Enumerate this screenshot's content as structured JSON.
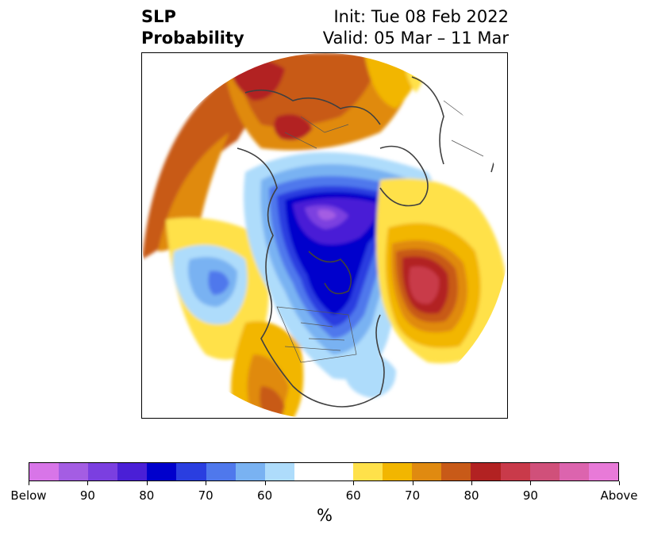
{
  "header": {
    "title_line1": "SLP",
    "title_line2": "Probability",
    "init": "Init: Tue 08 Feb 2022",
    "valid": "Valid: 05 Mar – 11 Mar"
  },
  "colorbar": {
    "unit": "%",
    "colors": [
      "#d875e8",
      "#a45de3",
      "#7b3fe0",
      "#4a1fd6",
      "#0000cc",
      "#2a3ee0",
      "#4f78ec",
      "#79b2f2",
      "#aedcfb",
      "#ffffff",
      "#ffe14a",
      "#f2b600",
      "#e08a10",
      "#c85a18",
      "#b22222",
      "#c93a4a",
      "#d0507a",
      "#dc64ae",
      "#e87ad8"
    ],
    "tick_labels": [
      "Below",
      "90",
      "80",
      "70",
      "60",
      "60",
      "70",
      "80",
      "90",
      "Above"
    ]
  }
}
